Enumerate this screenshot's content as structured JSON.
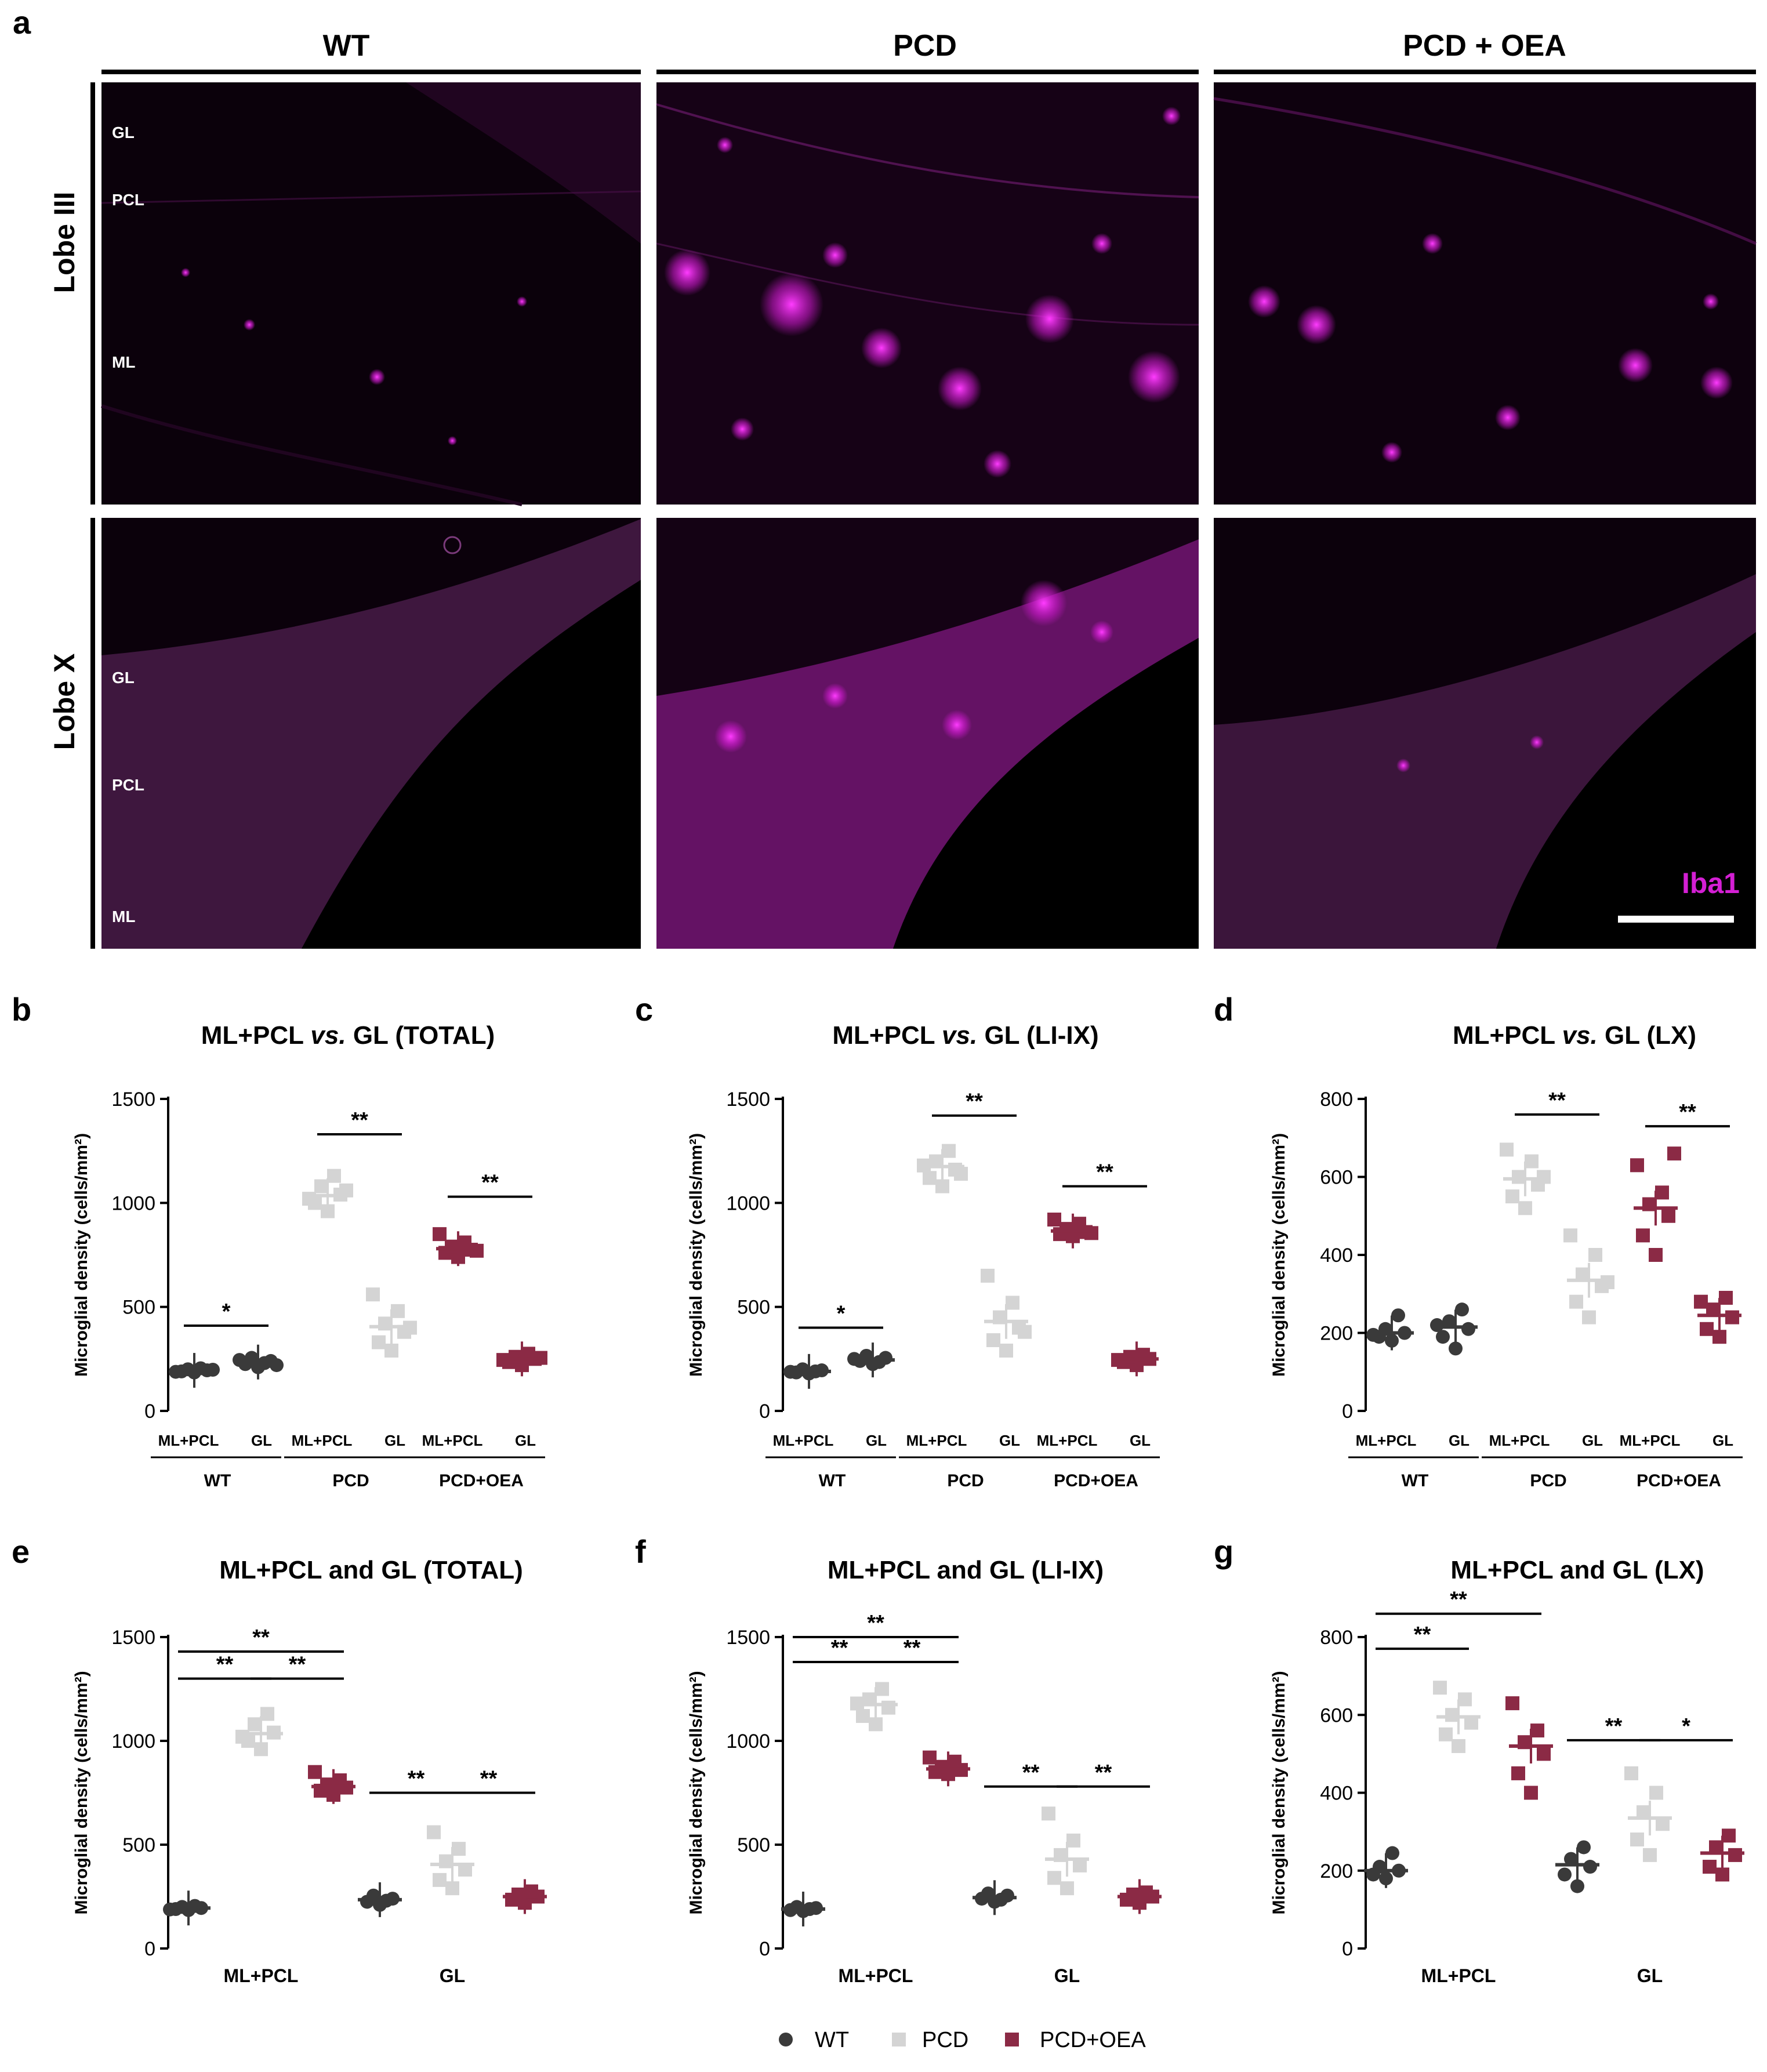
{
  "figure": {
    "panel_a": {
      "label": "a",
      "columns": [
        "WT",
        "PCD",
        "PCD + OEA"
      ],
      "rows": [
        "Lobe III",
        "Lobe X"
      ],
      "layers_lobe3": [
        "GL",
        "PCL",
        "ML"
      ],
      "layers_lobe10": [
        "GL",
        "PCL",
        "ML"
      ],
      "marker": "Iba1"
    },
    "legend": [
      {
        "label": "WT",
        "color": "#3a3a3a",
        "shape": "circle"
      },
      {
        "label": "PCD",
        "color": "#d4d4d4",
        "shape": "square"
      },
      {
        "label": "PCD+OEA",
        "color": "#8b2a45",
        "shape": "square"
      }
    ],
    "colors": {
      "WT": "#3a3a3a",
      "PCD": "#d4d4d4",
      "PCD+OEA": "#8b2a45",
      "magenta": "#d41fd4"
    }
  },
  "chart_data": [
    {
      "id": "b",
      "label": "b",
      "type": "scatter",
      "title_pre": "ML+PCL ",
      "title_em": "vs.",
      "title_post": " GL (TOTAL)",
      "ylabel": "Microglial density (cells/mm²)",
      "ylim": [
        0,
        1500
      ],
      "yticks": [
        "0",
        "500",
        "1000",
        "1500"
      ],
      "layout": "by_genotype",
      "groups": [
        "WT",
        "PCD",
        "PCD+OEA"
      ],
      "categories": [
        "ML+PCL",
        "GL"
      ],
      "series": [
        {
          "group": "WT",
          "category": "ML+PCL",
          "mean": 195,
          "points": [
            185,
            190,
            195,
            200,
            205,
            188,
            198
          ]
        },
        {
          "group": "WT",
          "category": "GL",
          "mean": 235,
          "points": [
            210,
            225,
            240,
            255,
            230,
            245,
            220
          ]
        },
        {
          "group": "PCD",
          "category": "ML+PCL",
          "mean": 1035,
          "points": [
            960,
            1000,
            1040,
            1080,
            1130,
            1020,
            1060
          ]
        },
        {
          "group": "PCD",
          "category": "GL",
          "mean": 405,
          "points": [
            290,
            330,
            380,
            420,
            480,
            560,
            400
          ]
        },
        {
          "group": "PCD+OEA",
          "category": "ML+PCL",
          "mean": 780,
          "points": [
            740,
            760,
            775,
            790,
            810,
            850,
            770
          ]
        },
        {
          "group": "PCD+OEA",
          "category": "GL",
          "mean": 250,
          "points": [
            220,
            235,
            250,
            260,
            275,
            245,
            255
          ]
        }
      ],
      "significance": [
        {
          "label": "*",
          "from": [
            "WT",
            "ML+PCL"
          ],
          "to": [
            "WT",
            "GL"
          ],
          "y": 410
        },
        {
          "label": "**",
          "from": [
            "PCD",
            "ML+PCL"
          ],
          "to": [
            "PCD",
            "GL"
          ],
          "y": 1330
        },
        {
          "label": "**",
          "from": [
            "PCD+OEA",
            "ML+PCL"
          ],
          "to": [
            "PCD+OEA",
            "GL"
          ],
          "y": 1030
        }
      ]
    },
    {
      "id": "c",
      "label": "c",
      "type": "scatter",
      "title_pre": "ML+PCL ",
      "title_em": "vs.",
      "title_post": " GL (LI-IX)",
      "ylabel": "Microglial density (cells/mm²)",
      "ylim": [
        0,
        1500
      ],
      "yticks": [
        "0",
        "500",
        "1000",
        "1500"
      ],
      "layout": "by_genotype",
      "groups": [
        "WT",
        "PCD",
        "PCD+OEA"
      ],
      "categories": [
        "ML+PCL",
        "GL"
      ],
      "series": [
        {
          "group": "WT",
          "category": "ML+PCL",
          "mean": 190,
          "points": [
            180,
            185,
            195,
            200,
            190,
            188
          ]
        },
        {
          "group": "WT",
          "category": "GL",
          "mean": 245,
          "points": [
            225,
            240,
            255,
            265,
            235,
            250
          ]
        },
        {
          "group": "PCD",
          "category": "ML+PCL",
          "mean": 1175,
          "points": [
            1080,
            1120,
            1160,
            1200,
            1250,
            1180,
            1140
          ]
        },
        {
          "group": "PCD",
          "category": "GL",
          "mean": 430,
          "points": [
            290,
            340,
            400,
            450,
            520,
            650,
            380
          ]
        },
        {
          "group": "PCD+OEA",
          "category": "ML+PCL",
          "mean": 865,
          "points": [
            840,
            850,
            860,
            875,
            900,
            920,
            855
          ]
        },
        {
          "group": "PCD+OEA",
          "category": "GL",
          "mean": 250,
          "points": [
            220,
            235,
            250,
            260,
            270,
            245
          ]
        }
      ],
      "significance": [
        {
          "label": "*",
          "from": [
            "WT",
            "ML+PCL"
          ],
          "to": [
            "WT",
            "GL"
          ],
          "y": 400
        },
        {
          "label": "**",
          "from": [
            "PCD",
            "ML+PCL"
          ],
          "to": [
            "PCD",
            "GL"
          ],
          "y": 1420
        },
        {
          "label": "**",
          "from": [
            "PCD+OEA",
            "ML+PCL"
          ],
          "to": [
            "PCD+OEA",
            "GL"
          ],
          "y": 1080
        }
      ]
    },
    {
      "id": "d",
      "label": "d",
      "type": "scatter",
      "title_pre": "ML+PCL ",
      "title_em": "vs.",
      "title_post": " GL (LX)",
      "ylabel": "Microglial density (cells/mm²)",
      "ylim": [
        0,
        800
      ],
      "yticks": [
        "0",
        "200",
        "400",
        "600",
        "800"
      ],
      "layout": "by_genotype",
      "groups": [
        "WT",
        "PCD",
        "PCD+OEA"
      ],
      "categories": [
        "ML+PCL",
        "GL"
      ],
      "series": [
        {
          "group": "WT",
          "category": "ML+PCL",
          "mean": 200,
          "points": [
            180,
            190,
            200,
            210,
            245,
            195
          ]
        },
        {
          "group": "WT",
          "category": "GL",
          "mean": 215,
          "points": [
            160,
            190,
            210,
            230,
            260,
            220
          ]
        },
        {
          "group": "PCD",
          "category": "ML+PCL",
          "mean": 595,
          "points": [
            520,
            550,
            580,
            600,
            640,
            670,
            600
          ]
        },
        {
          "group": "PCD",
          "category": "GL",
          "mean": 335,
          "points": [
            240,
            280,
            320,
            350,
            400,
            450,
            330
          ]
        },
        {
          "group": "PCD+OEA",
          "category": "ML+PCL",
          "mean": 520,
          "points": [
            400,
            450,
            500,
            530,
            560,
            630,
            660
          ]
        },
        {
          "group": "PCD+OEA",
          "category": "GL",
          "mean": 245,
          "points": [
            190,
            210,
            240,
            260,
            290,
            280
          ]
        }
      ],
      "significance": [
        {
          "label": "**",
          "from": [
            "PCD",
            "ML+PCL"
          ],
          "to": [
            "PCD",
            "GL"
          ],
          "y": 760
        },
        {
          "label": "**",
          "from": [
            "PCD+OEA",
            "ML+PCL"
          ],
          "to": [
            "PCD+OEA",
            "GL"
          ],
          "y": 730
        }
      ]
    },
    {
      "id": "e",
      "label": "e",
      "type": "scatter",
      "title": "ML+PCL and GL (TOTAL)",
      "ylabel": "Microglial density (cells/mm²)",
      "ylim": [
        0,
        1500
      ],
      "yticks": [
        "0",
        "500",
        "1000",
        "1500"
      ],
      "layout": "by_region",
      "groups": [
        "ML+PCL",
        "GL"
      ],
      "categories": [
        "WT",
        "PCD",
        "PCD+OEA"
      ],
      "series": [
        {
          "group": "ML+PCL",
          "category": "WT",
          "mean": 195,
          "points": [
            185,
            190,
            195,
            200,
            205,
            188
          ]
        },
        {
          "group": "ML+PCL",
          "category": "PCD",
          "mean": 1035,
          "points": [
            960,
            1000,
            1040,
            1080,
            1130,
            1020
          ]
        },
        {
          "group": "ML+PCL",
          "category": "PCD+OEA",
          "mean": 780,
          "points": [
            740,
            760,
            775,
            790,
            810,
            850
          ]
        },
        {
          "group": "GL",
          "category": "WT",
          "mean": 235,
          "points": [
            210,
            225,
            240,
            255,
            230
          ]
        },
        {
          "group": "GL",
          "category": "PCD",
          "mean": 405,
          "points": [
            290,
            330,
            380,
            420,
            480,
            560
          ]
        },
        {
          "group": "GL",
          "category": "PCD+OEA",
          "mean": 250,
          "points": [
            220,
            235,
            250,
            260,
            275
          ]
        }
      ],
      "significance": [
        {
          "label": "**",
          "from": [
            "ML+PCL",
            "WT"
          ],
          "to": [
            "ML+PCL",
            "PCD"
          ],
          "y": 1300
        },
        {
          "label": "**",
          "from": [
            "ML+PCL",
            "PCD"
          ],
          "to": [
            "ML+PCL",
            "PCD+OEA"
          ],
          "y": 1300
        },
        {
          "label": "**",
          "from": [
            "ML+PCL",
            "WT"
          ],
          "to": [
            "ML+PCL",
            "PCD+OEA"
          ],
          "y": 1430
        },
        {
          "label": "**",
          "from": [
            "GL",
            "WT"
          ],
          "to": [
            "GL",
            "PCD"
          ],
          "y": 750
        },
        {
          "label": "**",
          "from": [
            "GL",
            "PCD"
          ],
          "to": [
            "GL",
            "PCD+OEA"
          ],
          "y": 750
        }
      ]
    },
    {
      "id": "f",
      "label": "f",
      "type": "scatter",
      "title": "ML+PCL and GL (LI-IX)",
      "ylabel": "Microglial density (cells/mm²)",
      "ylim": [
        0,
        1500
      ],
      "yticks": [
        "0",
        "500",
        "1000",
        "1500"
      ],
      "layout": "by_region",
      "groups": [
        "ML+PCL",
        "GL"
      ],
      "categories": [
        "WT",
        "PCD",
        "PCD+OEA"
      ],
      "series": [
        {
          "group": "ML+PCL",
          "category": "WT",
          "mean": 190,
          "points": [
            180,
            185,
            195,
            200,
            190
          ]
        },
        {
          "group": "ML+PCL",
          "category": "PCD",
          "mean": 1175,
          "points": [
            1080,
            1120,
            1160,
            1200,
            1250,
            1180
          ]
        },
        {
          "group": "ML+PCL",
          "category": "PCD+OEA",
          "mean": 865,
          "points": [
            840,
            850,
            860,
            875,
            900,
            920
          ]
        },
        {
          "group": "GL",
          "category": "WT",
          "mean": 245,
          "points": [
            225,
            240,
            255,
            265,
            235
          ]
        },
        {
          "group": "GL",
          "category": "PCD",
          "mean": 430,
          "points": [
            290,
            340,
            400,
            450,
            520,
            650
          ]
        },
        {
          "group": "GL",
          "category": "PCD+OEA",
          "mean": 250,
          "points": [
            220,
            235,
            250,
            260,
            270
          ]
        }
      ],
      "significance": [
        {
          "label": "**",
          "from": [
            "ML+PCL",
            "WT"
          ],
          "to": [
            "ML+PCL",
            "PCD"
          ],
          "y": 1380
        },
        {
          "label": "**",
          "from": [
            "ML+PCL",
            "PCD"
          ],
          "to": [
            "ML+PCL",
            "PCD+OEA"
          ],
          "y": 1380
        },
        {
          "label": "**",
          "from": [
            "ML+PCL",
            "WT"
          ],
          "to": [
            "ML+PCL",
            "PCD+OEA"
          ],
          "y": 1500
        },
        {
          "label": "**",
          "from": [
            "GL",
            "WT"
          ],
          "to": [
            "GL",
            "PCD"
          ],
          "y": 780
        },
        {
          "label": "**",
          "from": [
            "GL",
            "PCD"
          ],
          "to": [
            "GL",
            "PCD+OEA"
          ],
          "y": 780
        }
      ]
    },
    {
      "id": "g",
      "label": "g",
      "type": "scatter",
      "title": "ML+PCL and GL (LX)",
      "ylabel": "Microglial density (cells/mm²)",
      "ylim": [
        0,
        800
      ],
      "yticks": [
        "0",
        "200",
        "400",
        "600",
        "800"
      ],
      "layout": "by_region",
      "groups": [
        "ML+PCL",
        "GL"
      ],
      "categories": [
        "WT",
        "PCD",
        "PCD+OEA"
      ],
      "series": [
        {
          "group": "ML+PCL",
          "category": "WT",
          "mean": 200,
          "points": [
            180,
            190,
            200,
            210,
            245
          ]
        },
        {
          "group": "ML+PCL",
          "category": "PCD",
          "mean": 595,
          "points": [
            520,
            550,
            580,
            600,
            640,
            670
          ]
        },
        {
          "group": "ML+PCL",
          "category": "PCD+OEA",
          "mean": 520,
          "points": [
            400,
            450,
            500,
            530,
            560,
            630
          ]
        },
        {
          "group": "GL",
          "category": "WT",
          "mean": 215,
          "points": [
            160,
            190,
            210,
            230,
            260
          ]
        },
        {
          "group": "GL",
          "category": "PCD",
          "mean": 335,
          "points": [
            240,
            280,
            320,
            350,
            400,
            450
          ]
        },
        {
          "group": "GL",
          "category": "PCD+OEA",
          "mean": 245,
          "points": [
            190,
            210,
            240,
            260,
            290
          ]
        }
      ],
      "significance": [
        {
          "label": "**",
          "from": [
            "ML+PCL",
            "WT"
          ],
          "to": [
            "ML+PCL",
            "PCD"
          ],
          "y": 770
        },
        {
          "label": "**",
          "from": [
            "ML+PCL",
            "WT"
          ],
          "to": [
            "ML+PCL",
            "PCD+OEA"
          ],
          "y": 860
        },
        {
          "label": "**",
          "from": [
            "GL",
            "WT"
          ],
          "to": [
            "GL",
            "PCD"
          ],
          "y": 535
        },
        {
          "label": "*",
          "from": [
            "GL",
            "PCD"
          ],
          "to": [
            "GL",
            "PCD+OEA"
          ],
          "y": 535
        }
      ]
    }
  ]
}
